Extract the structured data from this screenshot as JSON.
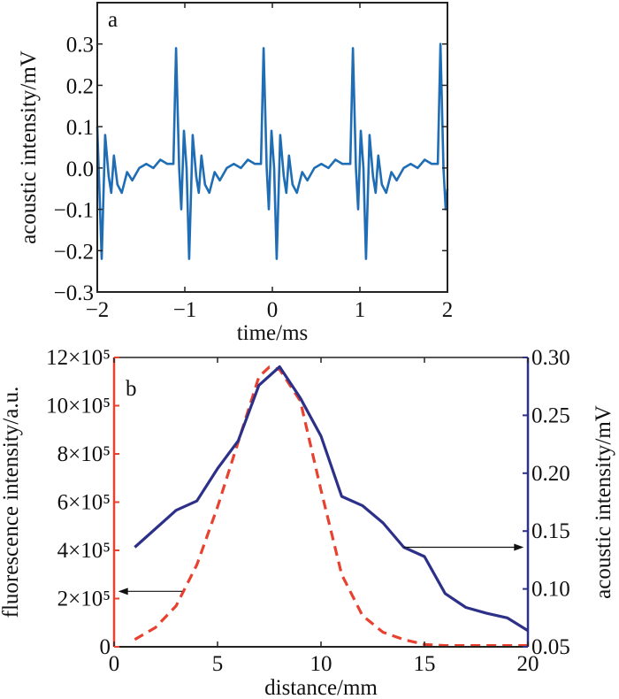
{
  "colors": {
    "panel_a_line": "#1f6db4",
    "fluorescence": "#e8412f",
    "acoustic": "#2c3088",
    "axis": "#222222"
  },
  "chart_data": [
    {
      "type": "line",
      "panel_label": "a",
      "xlabel": "time/ms",
      "ylabel": "acoustic intensity/mV",
      "xlim": [
        -2,
        2
      ],
      "ylim": [
        -0.3,
        0.4
      ],
      "xticks": [
        -2,
        -1,
        0,
        1,
        2
      ],
      "xtick_labels": [
        "−2",
        "−1",
        "0",
        "1",
        "2"
      ],
      "yticks": [
        -0.3,
        -0.2,
        -0.1,
        0.0,
        0.1,
        0.2,
        0.3
      ],
      "ytick_labels": [
        "−0.3",
        "−0.2",
        "−0.1",
        "0.0",
        "0.1",
        "0.2",
        "0.3"
      ],
      "grid": false,
      "series": [
        {
          "x": [
            -2.0,
            -1.95,
            -1.91,
            -1.87,
            -1.84,
            -1.81,
            -1.77,
            -1.72,
            -1.66,
            -1.6,
            -1.52,
            -1.44,
            -1.36,
            -1.28,
            -1.2,
            -1.13,
            -1.1,
            -1.065,
            -1.04,
            -1.01,
            -0.98,
            -0.95,
            -0.91,
            -0.87,
            -0.84,
            -0.81,
            -0.77,
            -0.72,
            -0.66,
            -0.6,
            -0.52,
            -0.44,
            -0.36,
            -0.28,
            -0.2,
            -0.13,
            -0.1,
            -0.065,
            -0.04,
            -0.01,
            0.02,
            0.05,
            0.09,
            0.13,
            0.16,
            0.19,
            0.23,
            0.28,
            0.34,
            0.4,
            0.48,
            0.56,
            0.64,
            0.72,
            0.8,
            0.89,
            0.92,
            0.955,
            0.98,
            1.01,
            1.04,
            1.07,
            1.11,
            1.15,
            1.18,
            1.21,
            1.25,
            1.3,
            1.36,
            1.42,
            1.5,
            1.58,
            1.66,
            1.74,
            1.82,
            1.89,
            1.92,
            1.955,
            1.98,
            2.0
          ],
          "y": [
            0.1,
            -0.22,
            0.08,
            -0.02,
            -0.06,
            0.03,
            -0.04,
            -0.06,
            -0.01,
            -0.03,
            0.0,
            0.01,
            0.0,
            0.02,
            0.01,
            0.01,
            0.29,
            0.0,
            -0.1,
            0.09,
            0.0,
            -0.22,
            0.08,
            -0.02,
            -0.06,
            0.03,
            -0.04,
            -0.06,
            -0.01,
            -0.03,
            0.0,
            0.01,
            0.0,
            0.02,
            0.01,
            0.01,
            0.29,
            0.0,
            -0.1,
            0.09,
            0.0,
            -0.22,
            0.08,
            -0.02,
            -0.06,
            0.03,
            -0.04,
            -0.06,
            -0.01,
            -0.03,
            0.0,
            0.01,
            0.0,
            0.02,
            0.01,
            0.01,
            0.29,
            0.0,
            -0.1,
            0.09,
            0.0,
            -0.22,
            0.08,
            -0.02,
            -0.06,
            0.03,
            -0.04,
            -0.06,
            -0.01,
            -0.03,
            0.0,
            0.01,
            0.0,
            0.02,
            0.01,
            0.01,
            0.3,
            0.0,
            -0.1,
            -0.05
          ]
        }
      ]
    },
    {
      "type": "line",
      "panel_label": "b",
      "xlabel": "distance/mm",
      "ylabel_left": "fluorescence intensity/a.u.",
      "ylabel_right": "acoustic intensity/mV",
      "xlim": [
        0,
        20
      ],
      "ylim_left": [
        0,
        1200000
      ],
      "ylim_right": [
        0.05,
        0.3
      ],
      "xticks": [
        0,
        5,
        10,
        15,
        20
      ],
      "xtick_labels": [
        "0",
        "5",
        "10",
        "15",
        "20"
      ],
      "yticks_left": [
        0,
        200000,
        400000,
        600000,
        800000,
        1000000,
        1200000
      ],
      "ytick_labels_left": [
        "0",
        "2×10⁵",
        "4×10⁵",
        "6×10⁵",
        "8×10⁵",
        "10×10⁵",
        "12×10⁵"
      ],
      "yticks_right": [
        0.05,
        0.1,
        0.15,
        0.2,
        0.25,
        0.3
      ],
      "ytick_labels_right": [
        "0.05",
        "0.10",
        "0.15",
        "0.20",
        "0.25",
        "0.30"
      ],
      "grid": false,
      "series": [
        {
          "axis": "left",
          "style": "dashed",
          "x": [
            1,
            2,
            3,
            4,
            5,
            6,
            7,
            7.5,
            8,
            9,
            10,
            11,
            12,
            13,
            14,
            15,
            16,
            17,
            18,
            19,
            20
          ],
          "y": [
            30000,
            80000,
            170000,
            340000,
            580000,
            850000,
            1120000,
            1160000,
            1150000,
            1020000,
            650000,
            300000,
            130000,
            60000,
            30000,
            10000,
            5000,
            5000,
            5000,
            5000,
            5000
          ]
        },
        {
          "axis": "right",
          "style": "solid",
          "x": [
            1,
            3,
            4,
            5,
            6,
            7,
            8,
            9,
            10,
            11,
            12,
            13,
            14,
            15,
            16,
            17,
            18,
            19,
            20
          ],
          "y": [
            0.136,
            0.168,
            0.176,
            0.204,
            0.228,
            0.276,
            0.292,
            0.265,
            0.232,
            0.18,
            0.172,
            0.157,
            0.136,
            0.128,
            0.096,
            0.084,
            0.079,
            0.075,
            0.064
          ]
        }
      ],
      "annotations": [
        {
          "type": "arrow",
          "from": [
            3.3,
            230000
          ],
          "to": [
            0.2,
            230000
          ],
          "axis": "left",
          "meaning": "points to left axis"
        },
        {
          "type": "arrow",
          "from": [
            14,
            0.136
          ],
          "to": [
            19.8,
            0.136
          ],
          "axis": "right",
          "meaning": "points to right axis"
        }
      ]
    }
  ]
}
